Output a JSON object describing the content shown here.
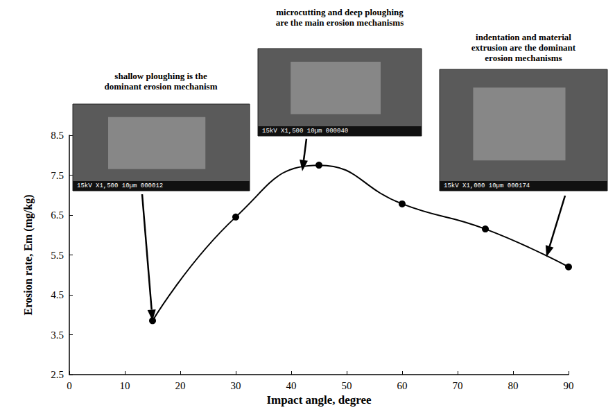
{
  "chart_data": {
    "type": "line",
    "x": [
      15,
      30,
      45,
      60,
      75,
      90
    ],
    "values": [
      3.85,
      6.45,
      7.75,
      6.78,
      6.15,
      5.2
    ],
    "color": "#000000",
    "marker": "circle",
    "line_style": "solid",
    "xlabel": "Impact angle, degree",
    "ylabel": "Erosion rate, Em (mg/kg)",
    "xlim": [
      0,
      90
    ],
    "xticks": [
      0,
      10,
      20,
      30,
      40,
      50,
      60,
      70,
      80,
      90
    ],
    "ylim": [
      2.5,
      8.5
    ],
    "yticks": [
      2.5,
      3.5,
      4.5,
      5.5,
      6.5,
      7.5,
      8.5
    ],
    "grid": false,
    "annotations": [
      {
        "text": "shallow ploughing is the dominant erosion mechanism",
        "x": 15,
        "y": 3.85,
        "image_caption": "15kV X1,500 10µm 000012"
      },
      {
        "text": "microcutting and deep ploughing are the main erosion mechanisms",
        "x": 42,
        "y": 7.6,
        "image_caption": "15kV X1,500 10µm 000040"
      },
      {
        "text": "indentation and material extrusion are the dominant erosion mechanisms",
        "x": 86,
        "y": 5.45,
        "image_caption": "15kV X1,000 10µm 000174"
      }
    ]
  }
}
